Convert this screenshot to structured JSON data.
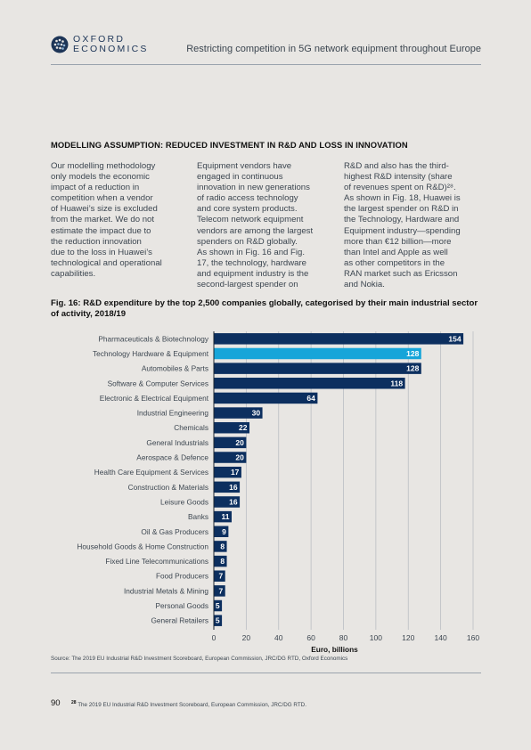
{
  "header": {
    "logo_line1": "OXFORD",
    "logo_line2": "ECONOMICS",
    "title": "Restricting competition in 5G network equipment throughout Europe"
  },
  "section_heading": "MODELLING ASSUMPTION: REDUCED INVESTMENT IN R&D AND LOSS IN INNOVATION",
  "columns": [
    [
      "Our modelling methodology",
      "only models the economic",
      "impact of a reduction in",
      "competition when a vendor",
      "of Huawei’s size is excluded",
      "from the market. We do not",
      "estimate the impact due to",
      "the reduction innovation",
      "due to the loss in Huawei’s",
      "technological and operational",
      "capabilities."
    ],
    [
      "Equipment vendors have",
      "engaged in continuous",
      "innovation in new generations",
      "of radio access technology",
      "and core system products.",
      "Telecom network equipment",
      "vendors are among the largest",
      "spenders on R&D globally.",
      "As shown in Fig. 16 and Fig.",
      "17, the technology, hardware",
      "and equipment industry is the",
      "second-largest spender on"
    ],
    [
      "R&D and also has the third-",
      "highest R&D intensity (share",
      "of revenues spent on R&D)²⁸.",
      "As shown in Fig. 18, Huawei is",
      "the largest spender on R&D in",
      "the Technology, Hardware and",
      "Equipment industry—spending",
      "more than €12 billion—more",
      "than Intel and Apple as well",
      "as other competitors in the",
      "RAN market such as Ericsson",
      "and Nokia."
    ]
  ],
  "figure_title": "Fig. 16: R&D expenditure by the top 2,500 companies globally, categorised by their main industrial sector of activity, 2018/19",
  "chart_data": {
    "type": "bar",
    "orientation": "horizontal",
    "categories": [
      "Pharmaceuticals & Biotechnology",
      "Technology Hardware & Equipment",
      "Automobiles & Parts",
      "Software & Computer Services",
      "Electronic & Electrical Equipment",
      "Industrial Engineering",
      "Chemicals",
      "General Industrials",
      "Aerospace & Defence",
      "Health Care Equipment & Services",
      "Construction & Materials",
      "Leisure Goods",
      "Banks",
      "Oil & Gas Producers",
      "Household Goods & Home Construction",
      "Fixed Line Telecommunications",
      "Food Producers",
      "Industrial Metals & Mining",
      "Personal Goods",
      "General Retailers"
    ],
    "values": [
      154,
      128,
      128,
      118,
      64,
      30,
      22,
      20,
      20,
      17,
      16,
      16,
      11,
      9,
      8,
      8,
      7,
      7,
      5,
      5
    ],
    "value_labels": [
      "154",
      "128",
      "128",
      "118",
      "64",
      "30",
      "22",
      "20",
      "20",
      "17",
      "16",
      "16",
      "11",
      "9",
      "8",
      "8",
      "7",
      "7",
      "5",
      "5"
    ],
    "highlight_index": 1,
    "xlabel": "Euro, billions",
    "xlim": [
      0,
      160
    ],
    "xticks": [
      0,
      20,
      40,
      60,
      80,
      100,
      120,
      140,
      160
    ],
    "xtick_labels": [
      "0",
      "20",
      "40",
      "60",
      "80",
      "100",
      "120",
      "140",
      "160"
    ],
    "grid": true,
    "colors": {
      "bar": "#0c2f5f",
      "highlight": "#16a5d9",
      "grid": "#b9bec4",
      "label": "#ffffff"
    }
  },
  "source": "Source: The 2019 EU Industrial R&D Investment Scoreboard, European Commission, JRC/DG RTD,  Oxford Economics",
  "footer": {
    "page_number": "90",
    "footnote_marker": "28",
    "footnote_text": "The 2019 EU Industrial R&D Investment Scoreboard, European Commission, JRC/DG RTD."
  }
}
